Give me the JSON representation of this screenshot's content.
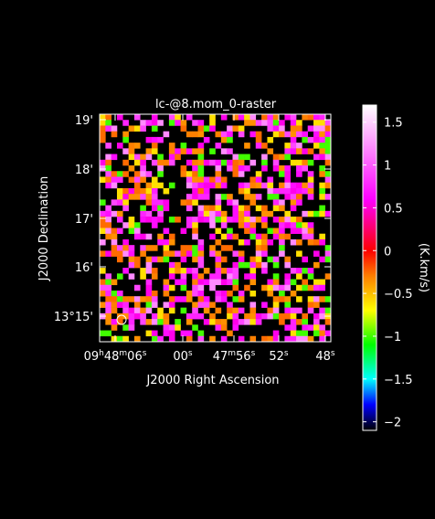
{
  "chart_data": {
    "type": "heatmap",
    "title": "lc-@8.mom_0-raster",
    "xlabel": "J2000 Right Ascension",
    "ylabel": "J2000 Declination",
    "x_ticks": [
      {
        "h": "09",
        "m": "48",
        "s": "06",
        "full": true
      },
      {
        "s": "00"
      },
      {
        "m": "47",
        "s": "56"
      },
      {
        "s": "52"
      },
      {
        "s": "48"
      }
    ],
    "y_ticks": [
      "19'",
      "18'",
      "17'",
      "16'",
      "13°15'"
    ],
    "colorbar": {
      "label": "(K.km/s)",
      "range": [
        -2.1,
        1.7
      ],
      "ticks": [
        "1.5",
        "1",
        "0.5",
        "0",
        "−0.5",
        "−1",
        "−1.5",
        "−2"
      ],
      "tick_values": [
        1.5,
        1.0,
        0.5,
        0.0,
        -0.5,
        -1.0,
        -1.5,
        -2.0
      ],
      "stops": [
        {
          "v": -2.1,
          "color": "#000000"
        },
        {
          "v": -1.8,
          "color": "#0000ff"
        },
        {
          "v": -1.5,
          "color": "#00ffff"
        },
        {
          "v": -1.1,
          "color": "#00ff00"
        },
        {
          "v": -0.7,
          "color": "#ffff00"
        },
        {
          "v": -0.3,
          "color": "#ff8000"
        },
        {
          "v": 0.0,
          "color": "#ff0000"
        },
        {
          "v": 0.6,
          "color": "#ff00ff"
        },
        {
          "v": 1.7,
          "color": "#ffffff"
        }
      ]
    },
    "pixel_grid": {
      "cols": 40,
      "rows": 40,
      "note_values": "random noise pixels in range -1.2..1.5 on black background",
      "fill_fraction": 0.58,
      "seed": 7
    },
    "beam_marker": "circle"
  }
}
